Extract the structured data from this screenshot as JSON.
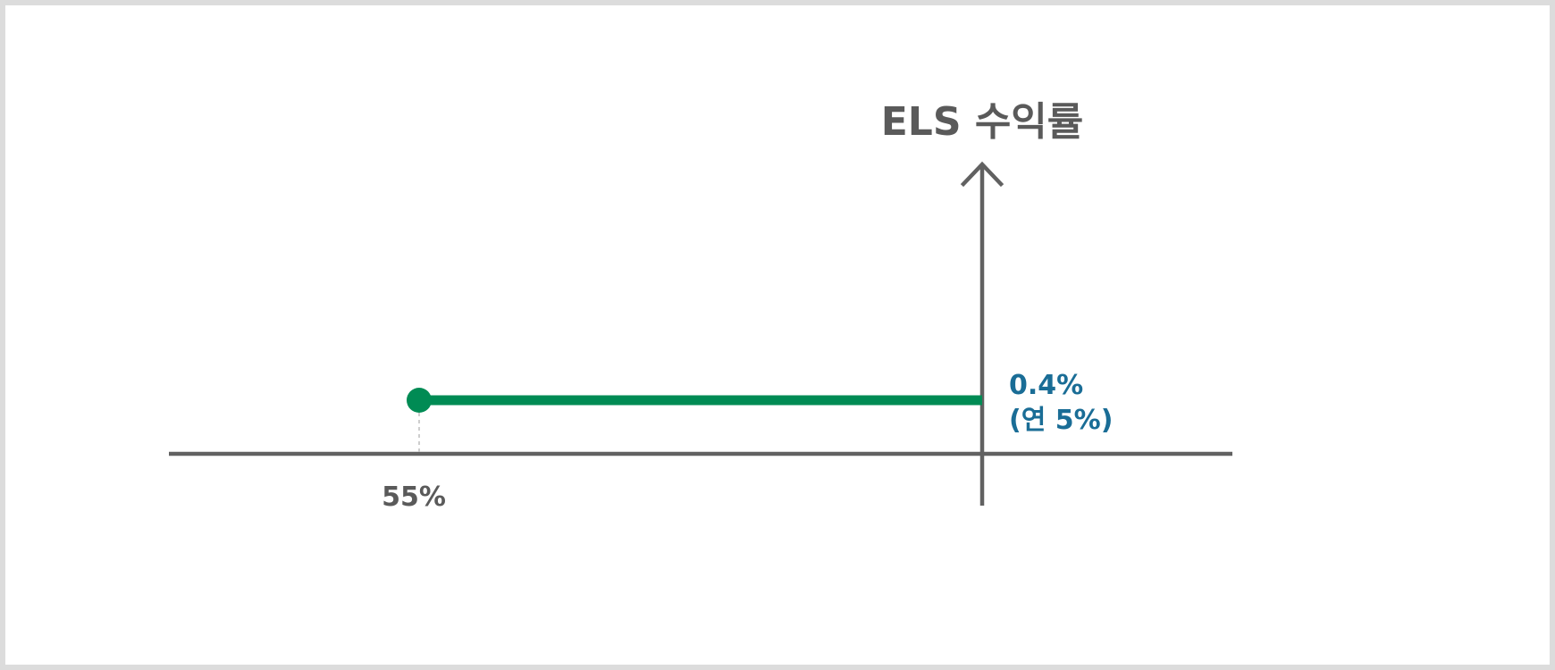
{
  "chart_data": {
    "type": "line",
    "ylabel": "ELS 수익률",
    "x_tick_label": "55%",
    "x_barrier": 55,
    "x_end": 100,
    "y_value": 0.4,
    "y_label_line1": "0.4%",
    "y_label_line2": "(연 5%)",
    "series": [
      {
        "x": [
          55,
          100
        ],
        "values": [
          0.4,
          0.4
        ]
      }
    ],
    "xlim": [
      35,
      120
    ],
    "ylim": [
      0,
      2.3
    ],
    "colors": {
      "payoff": "#008b54",
      "axis": "#616161",
      "value_label": "#1a6d96",
      "text": "#5a5a5a"
    }
  }
}
